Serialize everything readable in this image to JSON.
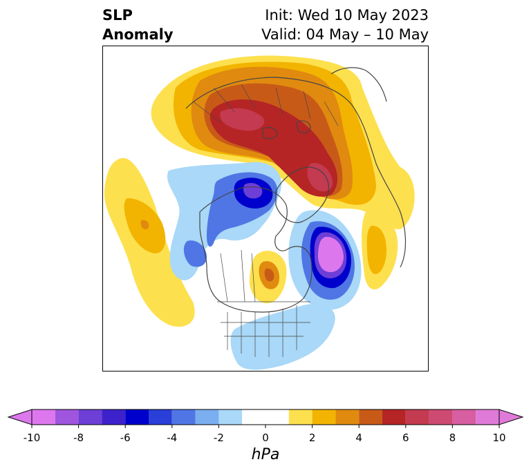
{
  "title": {
    "left_line1": "SLP",
    "left_line2": "Anomaly",
    "right_line1": "Init: Wed 10 May 2023",
    "right_line2": "Valid: 04 May – 10 May"
  },
  "map": {
    "projection": "polar stereographic, North Pole centered",
    "background": "#ffffff",
    "coastline_color": "#444444",
    "anomaly_features": [
      {
        "name": "positive anomaly over Arctic Ocean / Siberia",
        "level_hpa": 8
      },
      {
        "name": "positive anomaly over Scandinavia",
        "level_hpa": 4
      },
      {
        "name": "negative anomaly over Alaska / Bering Sea",
        "level_hpa": -8
      },
      {
        "name": "negative anomaly south of Greenland",
        "level_hpa": -10
      },
      {
        "name": "negative anomaly over Gulf of Alaska",
        "level_hpa": -4
      },
      {
        "name": "positive anomaly over Hudson Bay",
        "level_hpa": 4
      },
      {
        "name": "positive anomaly over North Pacific",
        "level_hpa": 4
      },
      {
        "name": "negative anomaly over eastern United States",
        "level_hpa": -2
      },
      {
        "name": "positive anomaly over Europe",
        "level_hpa": 2
      }
    ]
  },
  "colorbar": {
    "unit_label": "hPa",
    "ticks": [
      "-10",
      "-8",
      "-6",
      "-4",
      "-2",
      "0",
      "2",
      "4",
      "6",
      "8",
      "10"
    ],
    "tick_values": [
      -10,
      -8,
      -6,
      -4,
      -2,
      0,
      2,
      4,
      6,
      8,
      10
    ],
    "levels": [
      -10,
      -9,
      -8,
      -7,
      -6,
      -5,
      -4,
      -3,
      -2,
      -1,
      1,
      2,
      3,
      4,
      5,
      6,
      7,
      8,
      9,
      10
    ],
    "colors": [
      "#dd77ee",
      "#9f55dd",
      "#6d3fd6",
      "#3d22cc",
      "#0000cc",
      "#2a3ed8",
      "#4f76e4",
      "#7aaef0",
      "#a9d8f8",
      "#ffffff",
      "#fde04e",
      "#f2b400",
      "#e08a10",
      "#c85a18",
      "#b52525",
      "#c43a50",
      "#cd4a73",
      "#d65ea1",
      "#e07ad8"
    ],
    "extend": "both"
  }
}
